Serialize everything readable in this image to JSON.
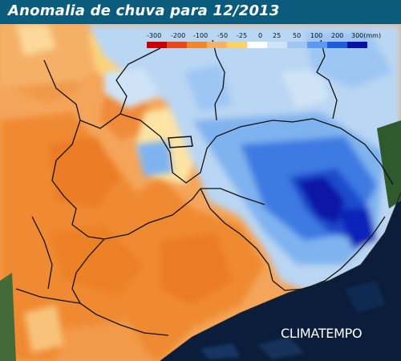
{
  "title": "Anomalia de chuva para 12/2013",
  "legend": {
    "labels": [
      "-300",
      "-200",
      "-100",
      "-50",
      "-25",
      "0",
      "25",
      "50",
      "100",
      "200",
      "300(mm)"
    ],
    "swatch_colors": [
      "#c80000",
      "#e8461b",
      "#f0882e",
      "#f5b06a",
      "#fdd06a",
      "#ffffff",
      "#cfe3f6",
      "#9dc6f4",
      "#5b9af0",
      "#1f5ed8",
      "#0a12a6"
    ]
  },
  "brand": "CLIMATEMPO",
  "colors": {
    "header": "#0b5c7c",
    "ocean": "#0b1d3a",
    "dry": "#f0882e",
    "wet": "#5b9af0"
  }
}
